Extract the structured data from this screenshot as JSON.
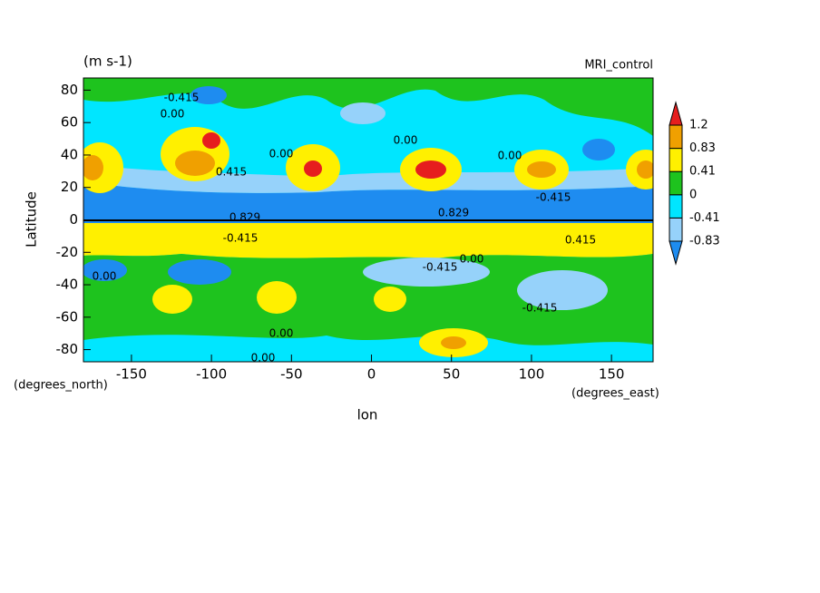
{
  "chart_data": {
    "type": "contour",
    "units": "(m s-1)",
    "title": "MRI_control",
    "x_label": "lon",
    "y_label": "Latitude",
    "x_units": "(degrees_east)",
    "y_units": "(degrees_north)",
    "xlim": [
      -180,
      176
    ],
    "ylim": [
      -87.5,
      87.5
    ],
    "xticks": [
      -150,
      -100,
      -50,
      0,
      50,
      100,
      150
    ],
    "yticks": [
      -80,
      -60,
      -40,
      -20,
      0,
      20,
      40,
      60,
      80
    ],
    "levels": [
      -0.83,
      -0.41,
      0,
      0.41,
      0.83,
      1.2
    ],
    "colors": [
      "#1e8cf0",
      "#96d2fa",
      "#00e6ff",
      "#1ec31e",
      "#fff000",
      "#f0a000",
      "#e61e1e"
    ],
    "contour_labels": [
      "-0.415",
      "0.00",
      "0.415",
      "0.00",
      "0.00",
      "0.00",
      "-0.415",
      "0.829",
      "0.829",
      "-0.415",
      "0.00",
      "-0.415",
      "0.00",
      "0.00",
      "0.00",
      "-0.415",
      "0.415"
    ]
  }
}
